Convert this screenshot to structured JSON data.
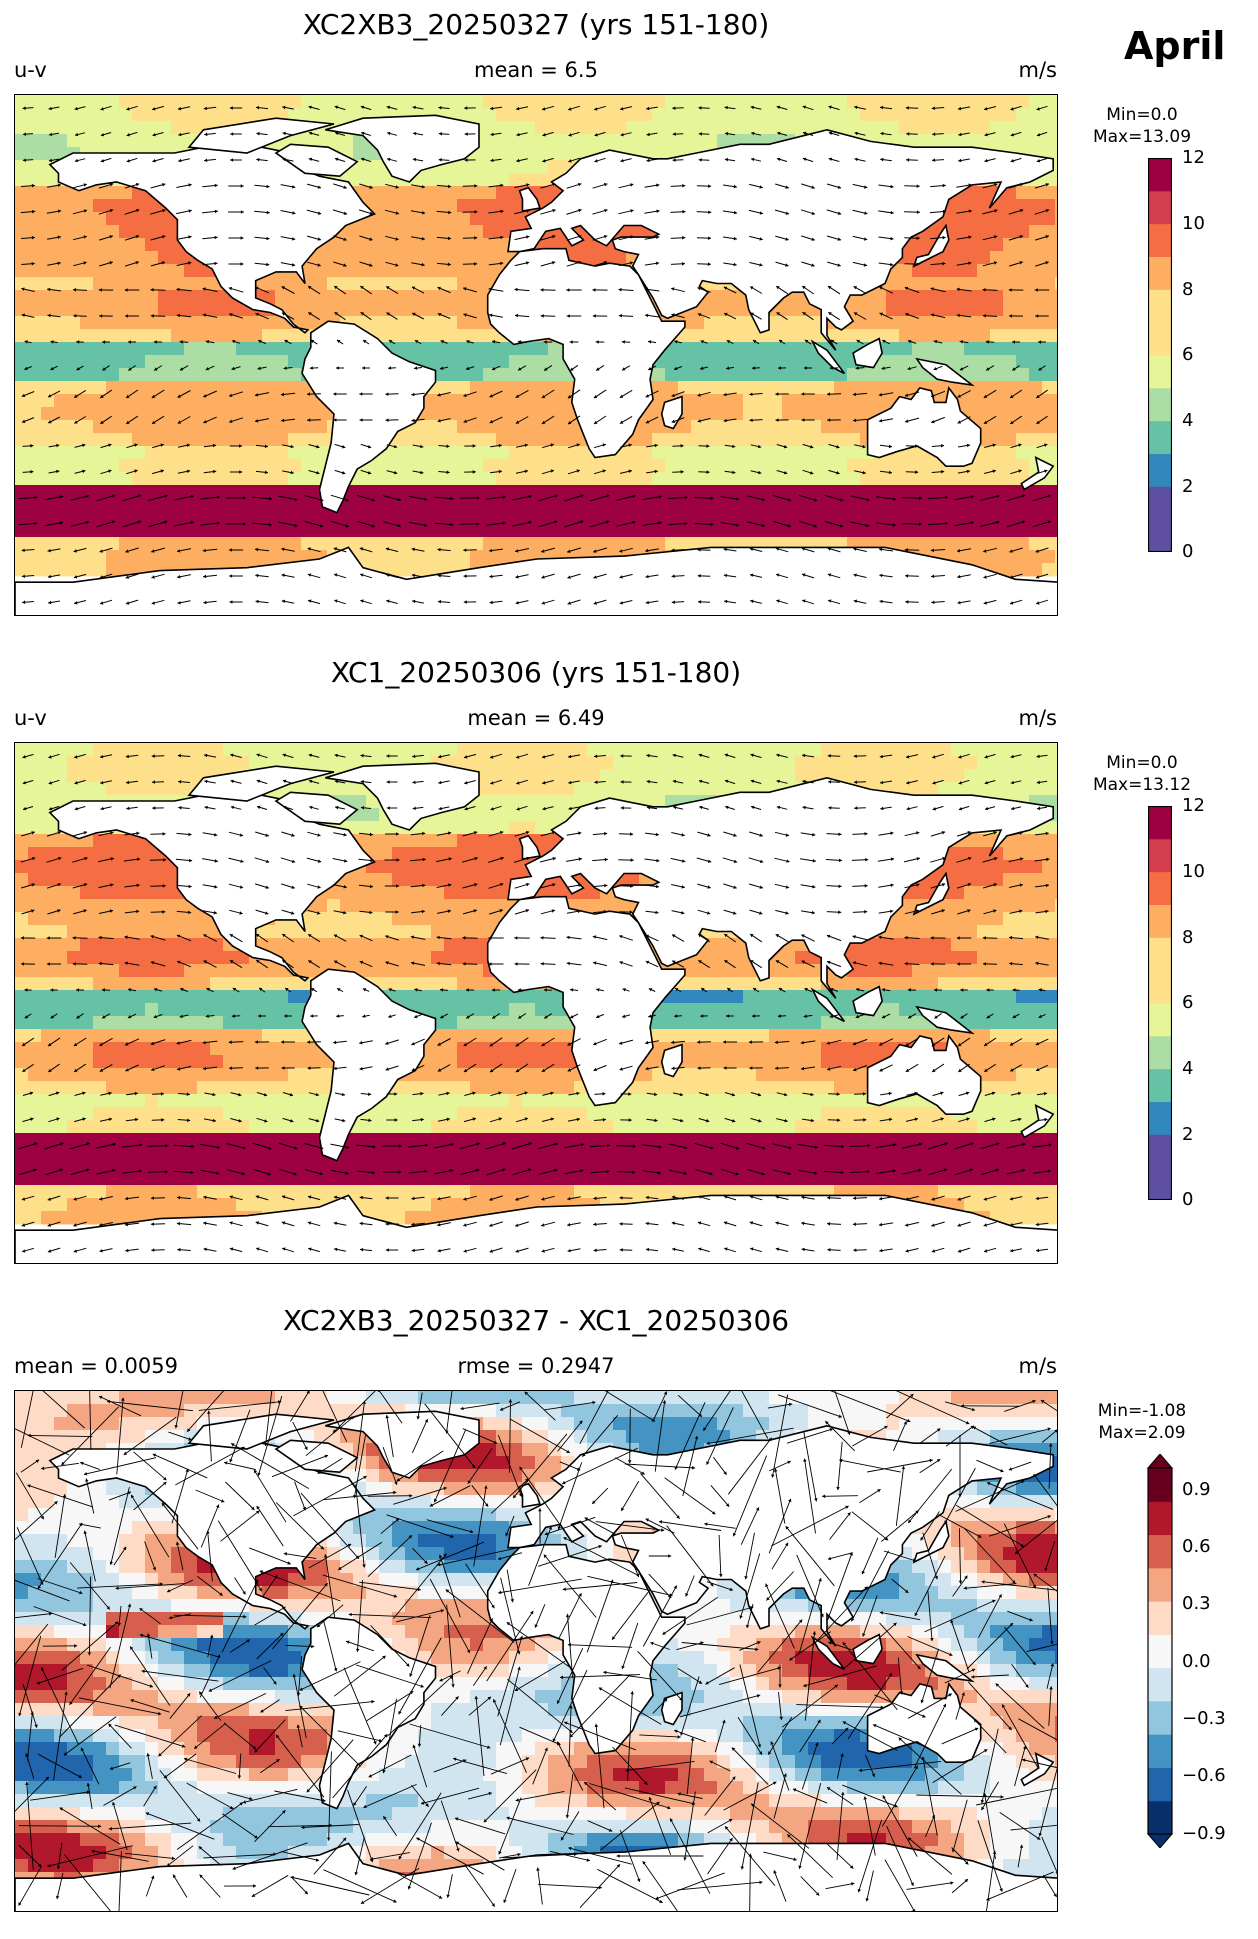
{
  "figure": {
    "month": "April",
    "units": "m/s"
  },
  "panels": [
    {
      "title": "XC2XB3_20250327 (yrs 151-180)",
      "left_label": "u-v",
      "center_label": "mean = 6.5",
      "right_label": "m/s",
      "colorbar_min": "Min=0.0",
      "colorbar_max": "Max=13.09",
      "colorbar_ticks": [
        "12",
        "10",
        "8",
        "6",
        "4",
        "2",
        "0"
      ]
    },
    {
      "title": "XC1_20250306 (yrs 151-180)",
      "left_label": "u-v",
      "center_label": "mean = 6.49",
      "right_label": "m/s",
      "colorbar_min": "Min=0.0",
      "colorbar_max": "Max=13.12",
      "colorbar_ticks": [
        "12",
        "10",
        "8",
        "6",
        "4",
        "2",
        "0"
      ]
    },
    {
      "title": "XC2XB3_20250327 - XC1_20250306",
      "left_label": "mean = 0.0059",
      "center_label": "rmse = 0.2947",
      "right_label": "m/s",
      "colorbar_min": "Min=-1.08",
      "colorbar_max": "Max=2.09",
      "colorbar_ticks": [
        "0.9",
        "0.6",
        "0.3",
        "0.0",
        "−0.3",
        "−0.6",
        "−0.9"
      ]
    }
  ],
  "palettes": {
    "speed": [
      "#5e4fa2",
      "#3288bd",
      "#66c2a5",
      "#abdda4",
      "#e6f598",
      "#fee08b",
      "#fdae61",
      "#f46d43",
      "#d53e4f",
      "#9e0142"
    ],
    "diff": [
      "#08306b",
      "#2166ac",
      "#4393c3",
      "#92c5de",
      "#d1e5f0",
      "#f7f7f7",
      "#fddbc7",
      "#f4a582",
      "#d6604d",
      "#b2182b",
      "#67001f"
    ],
    "land": "#ffffff",
    "coast": "#000000",
    "arrow": "#000000"
  }
}
